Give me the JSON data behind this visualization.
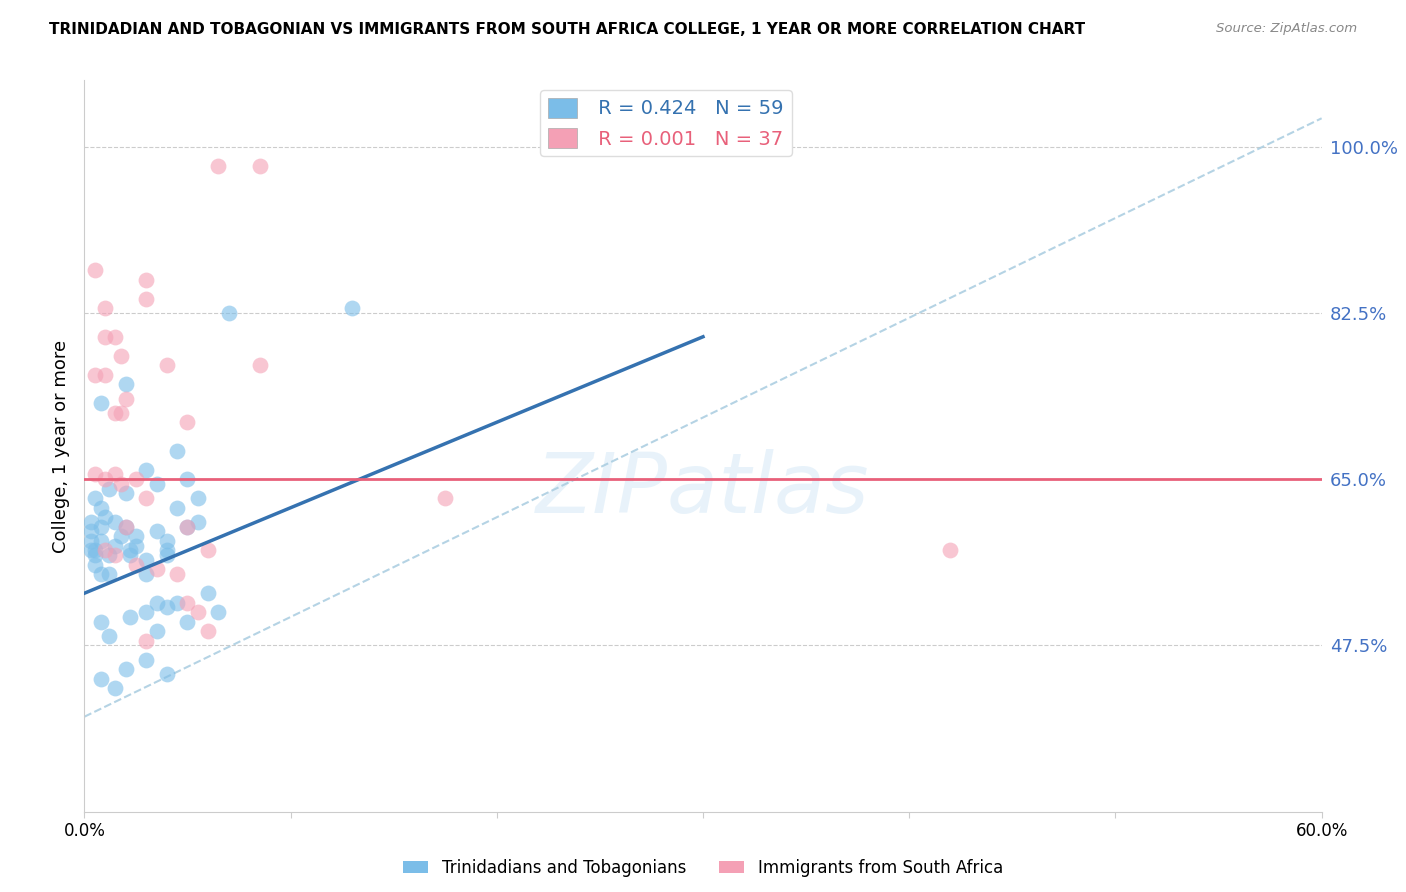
{
  "title": "TRINIDADIAN AND TOBAGONIAN VS IMMIGRANTS FROM SOUTH AFRICA COLLEGE, 1 YEAR OR MORE CORRELATION CHART",
  "source": "Source: ZipAtlas.com",
  "ylabel": "College, 1 year or more",
  "y_ticks": [
    47.5,
    65.0,
    82.5,
    100.0
  ],
  "y_tick_labels": [
    "47.5%",
    "65.0%",
    "82.5%",
    "100.0%"
  ],
  "legend_blue_r": "R = 0.424",
  "legend_blue_n": "N = 59",
  "legend_pink_r": "R = 0.001",
  "legend_pink_n": "N = 37",
  "blue_color": "#7bbde8",
  "pink_color": "#f4a0b5",
  "trendline_blue": "#3572b0",
  "trendline_pink": "#e8607a",
  "trendline_diagonal_color": "#a8cce0",
  "watermark": "ZIPatlas",
  "blue_scatter": [
    [
      0.5,
      57.5
    ],
    [
      0.8,
      60.0
    ],
    [
      1.2,
      55.0
    ],
    [
      1.5,
      58.0
    ],
    [
      2.0,
      60.0
    ],
    [
      2.2,
      57.0
    ],
    [
      2.5,
      59.0
    ],
    [
      3.0,
      55.0
    ],
    [
      3.5,
      52.0
    ],
    [
      4.0,
      58.5
    ],
    [
      0.5,
      63.0
    ],
    [
      0.8,
      62.0
    ],
    [
      1.2,
      64.0
    ],
    [
      2.0,
      63.5
    ],
    [
      3.0,
      66.0
    ],
    [
      3.5,
      64.5
    ],
    [
      4.5,
      68.0
    ],
    [
      5.0,
      65.0
    ],
    [
      5.5,
      63.0
    ],
    [
      0.8,
      73.0
    ],
    [
      2.0,
      75.0
    ],
    [
      7.0,
      82.5
    ],
    [
      13.0,
      83.0
    ],
    [
      0.8,
      50.0
    ],
    [
      1.2,
      48.5
    ],
    [
      2.2,
      50.5
    ],
    [
      3.0,
      51.0
    ],
    [
      3.5,
      49.0
    ],
    [
      4.0,
      51.5
    ],
    [
      4.5,
      52.0
    ],
    [
      5.0,
      50.0
    ],
    [
      6.0,
      53.0
    ],
    [
      6.5,
      51.0
    ],
    [
      0.8,
      44.0
    ],
    [
      1.5,
      43.0
    ],
    [
      2.0,
      45.0
    ],
    [
      3.0,
      46.0
    ],
    [
      4.0,
      44.5
    ],
    [
      0.5,
      57.0
    ],
    [
      0.8,
      58.5
    ],
    [
      1.2,
      57.0
    ],
    [
      1.8,
      59.0
    ],
    [
      2.2,
      57.5
    ],
    [
      2.5,
      58.0
    ],
    [
      3.0,
      56.5
    ],
    [
      3.5,
      59.5
    ],
    [
      4.0,
      57.0
    ],
    [
      5.0,
      60.0
    ],
    [
      4.5,
      62.0
    ],
    [
      5.5,
      60.5
    ],
    [
      4.0,
      57.5
    ],
    [
      0.5,
      56.0
    ],
    [
      0.8,
      55.0
    ],
    [
      1.5,
      60.5
    ],
    [
      1.0,
      61.0
    ],
    [
      0.3,
      60.5
    ],
    [
      0.3,
      59.5
    ],
    [
      0.3,
      58.5
    ],
    [
      0.3,
      57.5
    ]
  ],
  "pink_scatter": [
    [
      6.5,
      98.0
    ],
    [
      8.5,
      98.0
    ],
    [
      8.5,
      77.0
    ],
    [
      3.0,
      86.0
    ],
    [
      3.0,
      84.0
    ],
    [
      4.0,
      77.0
    ],
    [
      0.5,
      87.0
    ],
    [
      1.0,
      83.0
    ],
    [
      1.0,
      80.0
    ],
    [
      1.5,
      80.0
    ],
    [
      1.8,
      78.0
    ],
    [
      0.5,
      76.0
    ],
    [
      1.0,
      76.0
    ],
    [
      1.5,
      72.0
    ],
    [
      1.8,
      72.0
    ],
    [
      2.0,
      73.5
    ],
    [
      5.0,
      71.0
    ],
    [
      0.5,
      65.5
    ],
    [
      1.0,
      65.0
    ],
    [
      1.5,
      65.5
    ],
    [
      1.8,
      64.5
    ],
    [
      2.5,
      65.0
    ],
    [
      3.0,
      63.0
    ],
    [
      5.0,
      60.0
    ],
    [
      6.0,
      57.5
    ],
    [
      42.0,
      57.5
    ],
    [
      17.5,
      63.0
    ],
    [
      2.0,
      60.0
    ],
    [
      1.0,
      57.5
    ],
    [
      1.5,
      57.0
    ],
    [
      2.5,
      56.0
    ],
    [
      3.5,
      55.5
    ],
    [
      4.5,
      55.0
    ],
    [
      5.5,
      51.0
    ],
    [
      5.0,
      52.0
    ],
    [
      3.0,
      48.0
    ],
    [
      6.0,
      49.0
    ]
  ],
  "xlim": [
    0,
    60
  ],
  "ylim": [
    30,
    107
  ],
  "blue_line_x": [
    0,
    30
  ],
  "blue_line_y": [
    53,
    80
  ],
  "pink_line_y": 65.0,
  "diag_line_x": [
    0,
    60
  ],
  "diag_line_y": [
    40,
    103
  ]
}
